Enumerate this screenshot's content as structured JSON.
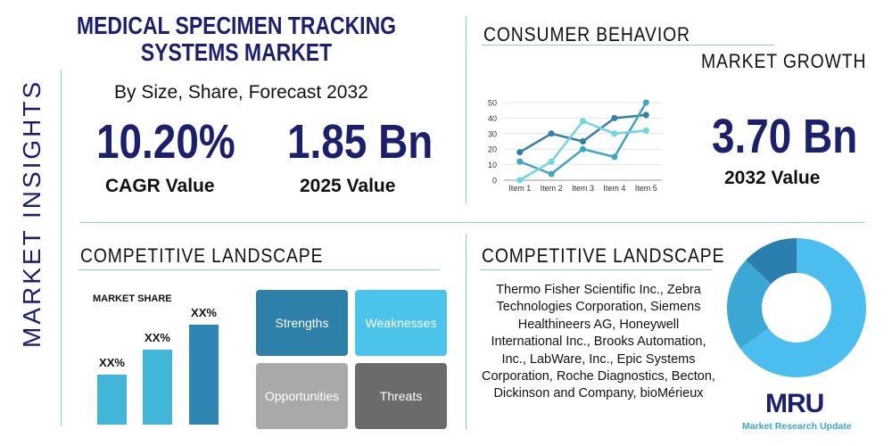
{
  "header": {
    "title": "MEDICAL SPECIMEN TRACKING SYSTEMS MARKET",
    "subtitle": "By Size, Share, Forecast 2032",
    "side_label": "MARKET INSIGHTS"
  },
  "stats": {
    "cagr_value": "10.20%",
    "cagr_label": "CAGR Value",
    "value_2025": "1.85 Bn",
    "label_2025": "2025 Value",
    "value_2032": "3.70 Bn",
    "label_2032": "2032 Value"
  },
  "sections": {
    "consumer_behavior": "CONSUMER BEHAVIOR",
    "market_growth": "MARKET GROWTH",
    "competitive_left": "COMPETITIVE LANDSCAPE",
    "competitive_right": "COMPETITIVE LANDSCAPE"
  },
  "market_share": {
    "title": "MARKET SHARE",
    "bars": [
      {
        "label": "XX%",
        "level": 0.4
      },
      {
        "label": "XX%",
        "level": 0.6
      },
      {
        "label": "XX%",
        "level": 0.8
      }
    ],
    "colors": [
      "#42b6d8",
      "#42b6d8",
      "#2f86b3"
    ]
  },
  "swot": [
    {
      "label": "Strengths",
      "color": "#2f80a8"
    },
    {
      "label": "Weaknesses",
      "color": "#4bc3ea"
    },
    {
      "label": "Opportunities",
      "color": "#a9a9a9"
    },
    {
      "label": "Threats",
      "color": "#6b6b6b"
    }
  ],
  "companies": "Thermo Fisher Scientific Inc., Zebra Technologies Corporation, Siemens Healthineers AG, Honeywell International Inc., Brooks Automation, Inc., LabWare, Inc., Epic Systems Corporation, Roche Diagnostics, Becton, Dickinson and Company, bioMérieux",
  "logo": {
    "mark": "MRU",
    "name": "Market Research Update"
  },
  "chart_data": [
    {
      "type": "line",
      "categories": [
        "Item 1",
        "Item 2",
        "Item 3",
        "Item 4",
        "Item 5"
      ],
      "ylim": [
        0,
        50
      ],
      "yticks": [
        0,
        10,
        20,
        30,
        40,
        50
      ],
      "grid": true,
      "series": [
        {
          "values": [
            18,
            30,
            25,
            40,
            42
          ],
          "color": "#2f7fa6"
        },
        {
          "values": [
            12,
            4,
            20,
            15,
            50
          ],
          "color": "#3ea6c4"
        },
        {
          "values": [
            0,
            12,
            38,
            30,
            32
          ],
          "color": "#6fd6e0"
        }
      ]
    },
    {
      "type": "pie",
      "donut": true,
      "values": [
        65,
        22,
        13
      ],
      "colors": [
        "#4bbdee",
        "#3aa7d4",
        "#2a7fb0"
      ]
    }
  ]
}
